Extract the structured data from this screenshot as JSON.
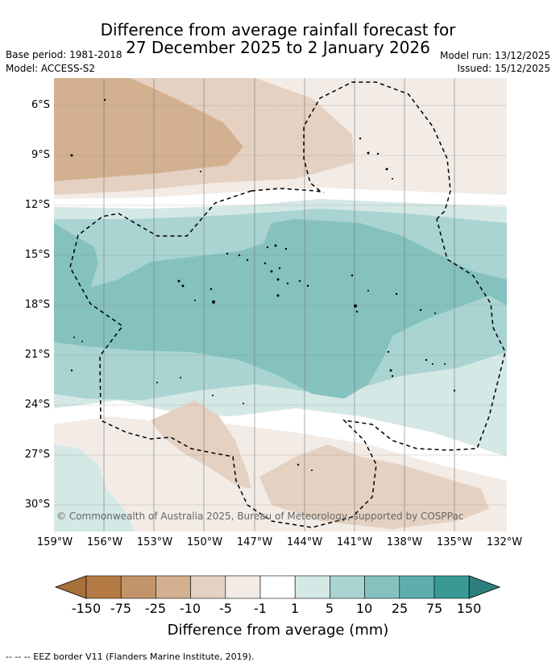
{
  "title_line1": "Difference from average rainfall forecast for",
  "title_line2": "27 December 2025 to 2 January 2026",
  "base_period": "Base period: 1981-2018",
  "model": "Model: ACCESS-S2",
  "model_run": "Model run: 13/12/2025",
  "issued": "Issued: 15/12/2025",
  "lat_labels": [
    "6°S",
    "9°S",
    "12°S",
    "15°S",
    "18°S",
    "21°S",
    "24°S",
    "27°S",
    "30°S"
  ],
  "lon_labels": [
    "159°W",
    "156°W",
    "153°W",
    "150°W",
    "147°W",
    "144°W",
    "141°W",
    "138°W",
    "135°W",
    "132°W"
  ],
  "copyright": "© Commonwealth of Australia 2025, Bureau of Meteorology, supported by COSPPac",
  "colorbar": {
    "labels": [
      "-150",
      "-75",
      "-25",
      "-10",
      "-5",
      "-1",
      "1",
      "5",
      "10",
      "25",
      "75",
      "150"
    ],
    "colors": [
      "#a8703a",
      "#b47a44",
      "#c29469",
      "#d3b08f",
      "#e4d1c1",
      "#f3ebe5",
      "#ffffff",
      "#d4e8e6",
      "#a9d4d2",
      "#84c1bf",
      "#5eaeac",
      "#3a9995",
      "#2c7f7b"
    ],
    "title": "Difference from average (mm)"
  },
  "legend_footer": "--  --  -- EEZ border V11 (Flanders Marine Institute, 2019)."
}
